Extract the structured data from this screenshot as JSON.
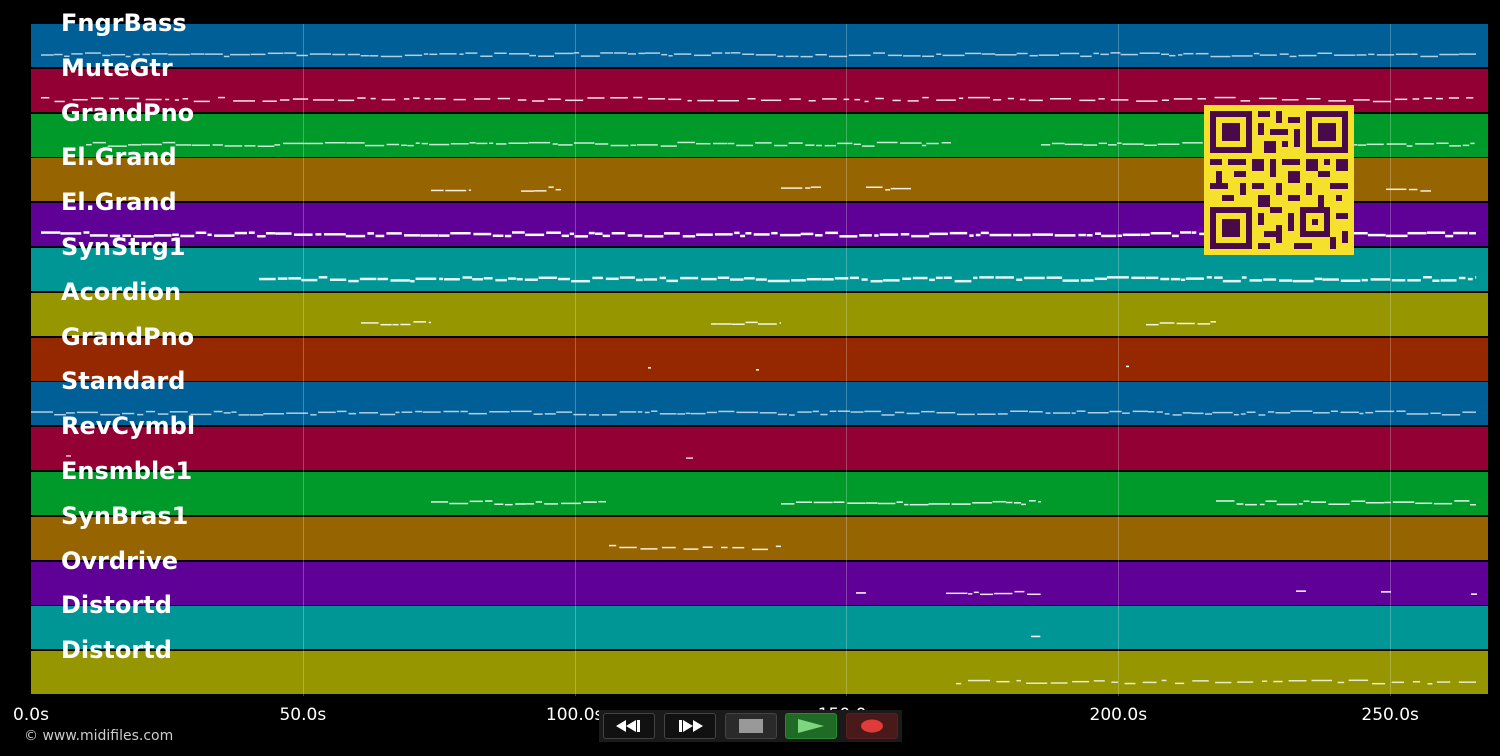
{
  "tracks": [
    {
      "name": "FngrBass",
      "color": "#005f96"
    },
    {
      "name": "MuteGtr",
      "color": "#930034"
    },
    {
      "name": "GrandPno",
      "color": "#009a2a"
    },
    {
      "name": "El.Grand",
      "color": "#966400"
    },
    {
      "name": "El.Grand",
      "color": "#5f0096"
    },
    {
      "name": "SynStrg1",
      "color": "#009696"
    },
    {
      "name": "Acordion",
      "color": "#969600"
    },
    {
      "name": "GrandPno",
      "color": "#962800"
    },
    {
      "name": "Standard",
      "color": "#005f96"
    },
    {
      "name": "RevCymbl",
      "color": "#930034"
    },
    {
      "name": "Ensmble1",
      "color": "#009a2a"
    },
    {
      "name": "SynBras1",
      "color": "#966400"
    },
    {
      "name": "Ovrdrive",
      "color": "#5f0096"
    },
    {
      "name": "Distortd",
      "color": "#009696"
    },
    {
      "name": "Distortd",
      "color": "#969600"
    }
  ],
  "timeline": {
    "duration_s": 268,
    "ticks": [
      "0.0s",
      "50.0s",
      "100.0s",
      "150.0s",
      "200.0s",
      "250.0s"
    ],
    "tick_values": [
      0,
      50,
      100,
      150,
      200,
      250
    ]
  },
  "transport": {
    "rewind_icon": "rewind-icon",
    "fast_forward_icon": "fast-forward-icon",
    "stop_icon": "stop-icon",
    "play_icon": "play-icon",
    "record_icon": "record-icon"
  },
  "copyright": "© www.midifiles.com",
  "qr_icon": "qr-code-icon"
}
